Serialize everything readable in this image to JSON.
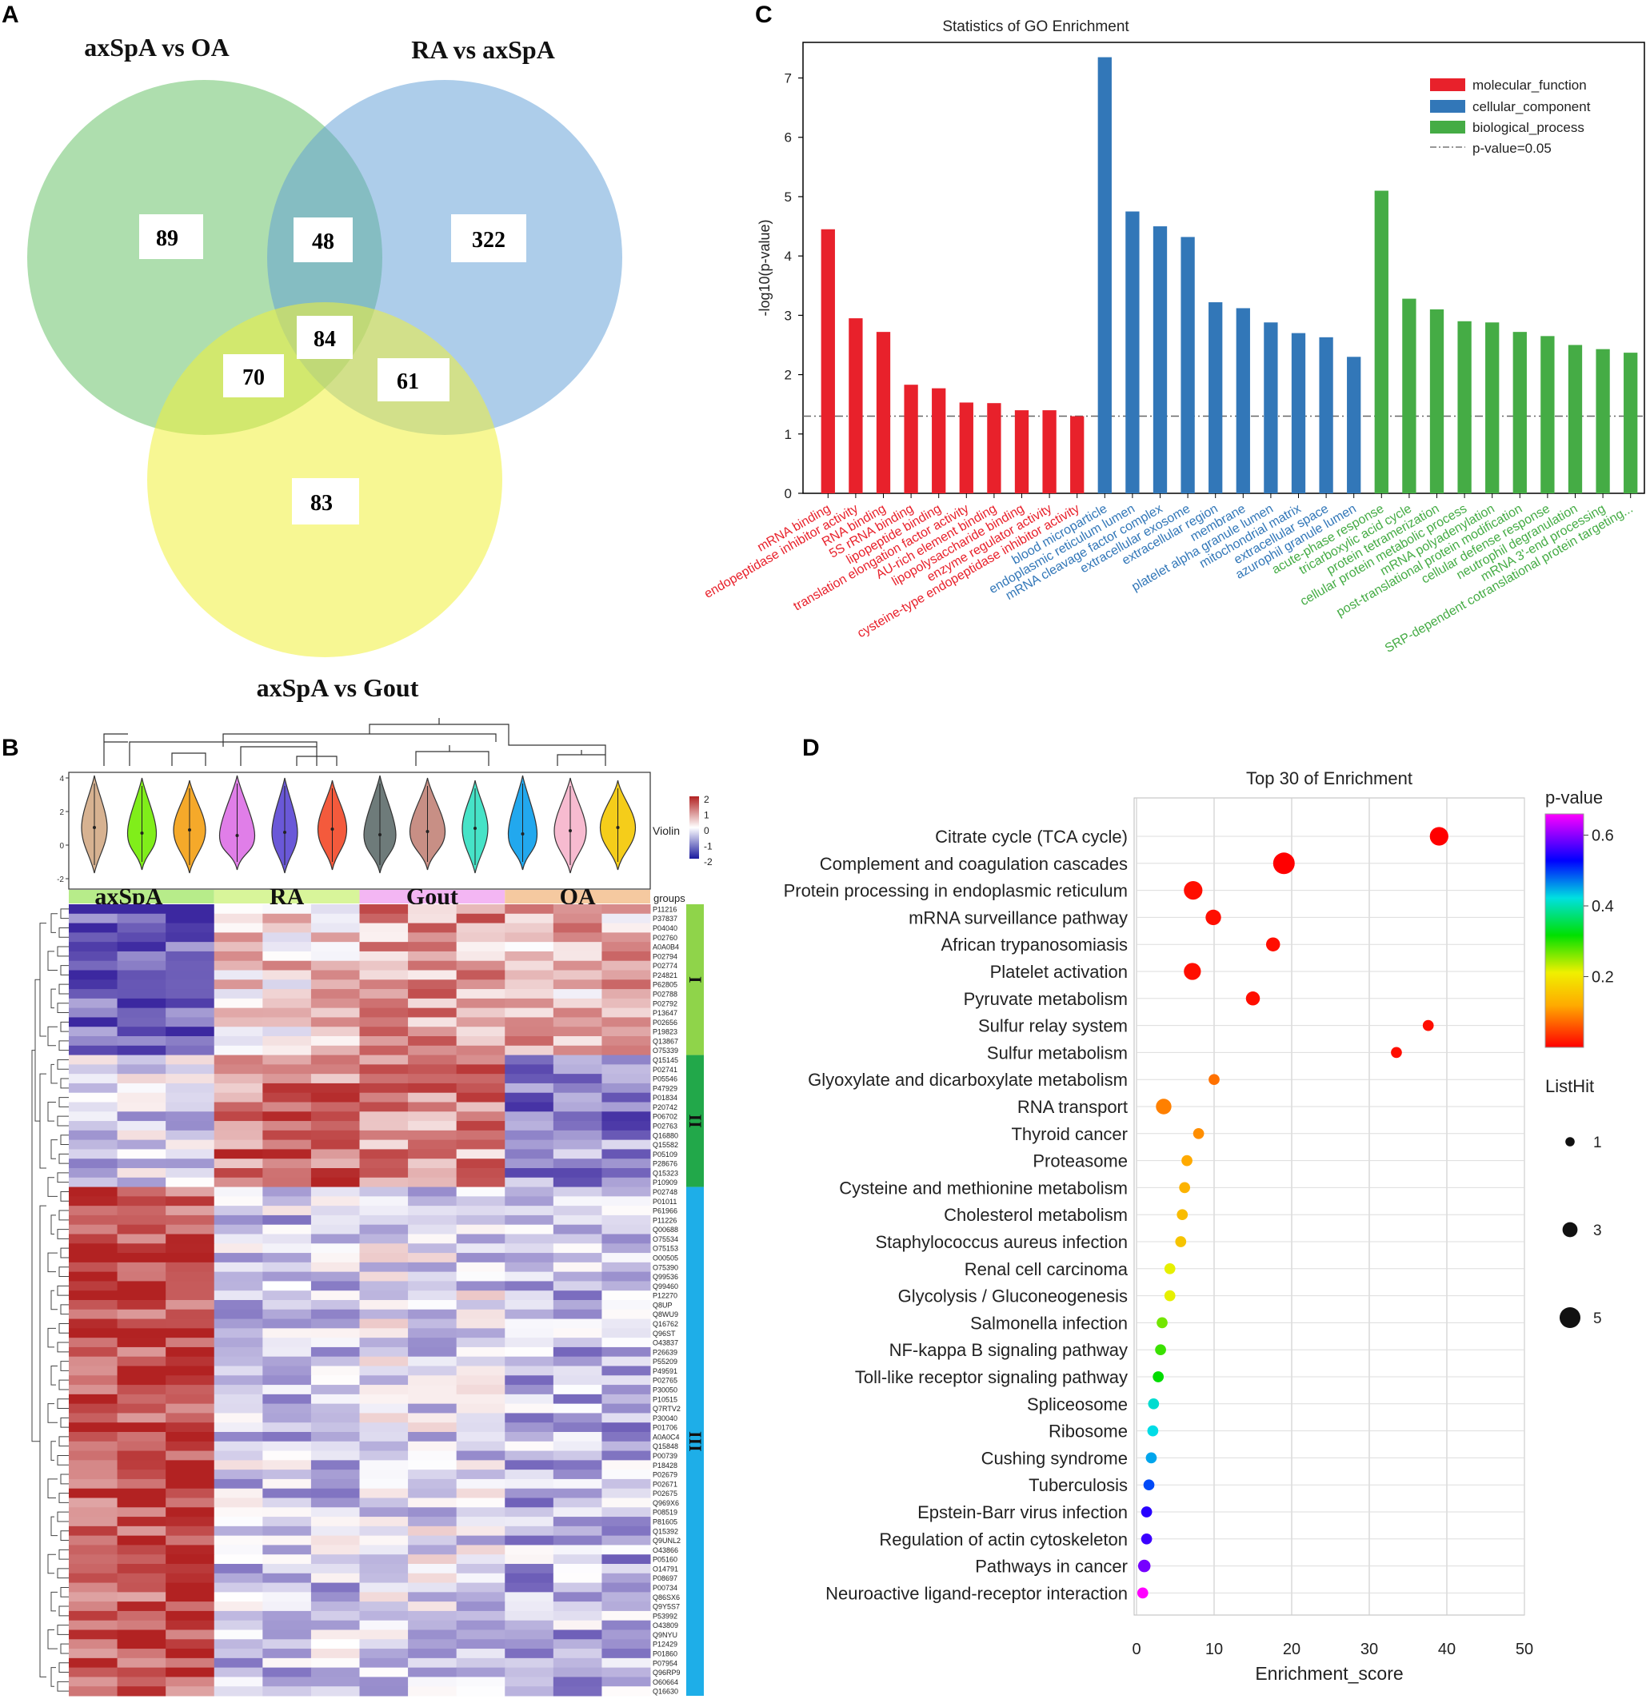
{
  "panels": {
    "a": "A",
    "b": "B",
    "c": "C",
    "d": "D"
  },
  "panel_a": {
    "sets": [
      {
        "name": "axSpA vs OA",
        "color": "#6cc36c"
      },
      {
        "name": "RA vs axSpA",
        "color": "#5b9bd5"
      },
      {
        "name": "axSpA vs Gout",
        "color": "#f0f03a"
      }
    ],
    "counts": [
      {
        "region": "axSpA vs OA only",
        "value": "89"
      },
      {
        "region": "axSpA vs OA & RA vs axSpA",
        "value": "48"
      },
      {
        "region": "RA vs axSpA only",
        "value": "322"
      },
      {
        "region": "all three",
        "value": "84"
      },
      {
        "region": "axSpA vs OA & axSpA vs Gout",
        "value": "70"
      },
      {
        "region": "RA vs axSpA & axSpA vs Gout",
        "value": "61"
      },
      {
        "region": "axSpA vs Gout only",
        "value": "83"
      }
    ]
  },
  "panel_b": {
    "groups_label": "groups",
    "violin_label": "Violin",
    "violin_axis_ticks": [
      "4",
      "2",
      "0",
      "-2"
    ],
    "colorbar_ticks": [
      "2",
      "1",
      "0",
      "-1",
      "-2"
    ],
    "groups": [
      {
        "name": "axSpA",
        "color": "#b7ec8a"
      },
      {
        "name": "RA",
        "color": "#d8f59a"
      },
      {
        "name": "Gout",
        "color": "#f3b6f3"
      },
      {
        "name": "OA",
        "color": "#f5c9a0"
      }
    ],
    "violin_colors": [
      "#d7b291",
      "#80ee1a",
      "#f5a92a",
      "#e07ee8",
      "#6a58d8",
      "#f45a3c",
      "#6e7b7a",
      "#c88f85",
      "#46e3c7",
      "#22a8ee",
      "#f7bbd0",
      "#f5cd1a"
    ],
    "clusters": [
      {
        "label": "I",
        "color": "#8fd44a",
        "rows": 16
      },
      {
        "label": "II",
        "color": "#22a84a",
        "rows": 14
      },
      {
        "label": "III",
        "color": "#1eaee8",
        "rows": 54
      }
    ],
    "row_labels": [
      "P11216",
      "P37837",
      "P04040",
      "P02760",
      "A0A0B4",
      "P02794",
      "P02774",
      "P24821",
      "P62805",
      "P02788",
      "P02792",
      "P13647",
      "P02656",
      "P19823",
      "Q13867",
      "O75339",
      "Q15145",
      "P02741",
      "P05546",
      "P47929",
      "P01834",
      "P20742",
      "P06702",
      "P02763",
      "Q16880",
      "Q15582",
      "P05109",
      "P28676",
      "Q15323",
      "P10909",
      "P02748",
      "P01011",
      "P61966",
      "P11226",
      "Q00688",
      "O75534",
      "O75153",
      "O00505",
      "O75390",
      "Q99536",
      "Q99460",
      "P12270",
      "Q8UP",
      "Q8WU9",
      "Q16762",
      "Q96ST",
      "O43837",
      "P26639",
      "P55209",
      "P49591",
      "P02765",
      "P30050",
      "P10515",
      "Q7RTV2",
      "P30040",
      "P01706",
      "A0A0C4",
      "Q15848",
      "P00739",
      "P18428",
      "P02679",
      "P02671",
      "P02675",
      "Q969X6",
      "P08519",
      "P81605",
      "Q15392",
      "Q9UNL2",
      "O43866",
      "P05160",
      "O14791",
      "P08697",
      "P00734",
      "Q86SX6",
      "Q9Y5S7",
      "P53992",
      "O43809",
      "Q9NYU",
      "P12429",
      "P01860",
      "P07954",
      "Q96RP9",
      "O60664",
      "Q16630"
    ]
  },
  "chart_data": [
    {
      "type": "bar",
      "title": "Statistics of GO Enrichment",
      "xlabel": "",
      "ylabel": "-log10(p-value)",
      "ylim": [
        0,
        7.6
      ],
      "yticks": [
        "0",
        "1",
        "2",
        "3",
        "4",
        "5",
        "6",
        "7"
      ],
      "threshold_label": "p-value=0.05",
      "threshold_value": 1.3,
      "legend_placement": "top-right",
      "series": [
        {
          "name": "molecular_function",
          "color": "#e8212b"
        },
        {
          "name": "cellular_component",
          "color": "#3277b8"
        },
        {
          "name": "biological_process",
          "color": "#45ac45"
        }
      ],
      "categories": [
        {
          "label": "mRNA binding",
          "series": 0,
          "value": 4.45
        },
        {
          "label": "endopeptidase inhibitor activity",
          "series": 0,
          "value": 2.95
        },
        {
          "label": "RNA binding",
          "series": 0,
          "value": 2.72
        },
        {
          "label": "5S rRNA binding",
          "series": 0,
          "value": 1.83
        },
        {
          "label": "lipopeptide binding",
          "series": 0,
          "value": 1.77
        },
        {
          "label": "translation elongation factor activity",
          "series": 0,
          "value": 1.53
        },
        {
          "label": "AU-rich element binding",
          "series": 0,
          "value": 1.52
        },
        {
          "label": "lipopolysaccharide binding",
          "series": 0,
          "value": 1.4
        },
        {
          "label": "enzyme regulator activity",
          "series": 0,
          "value": 1.4
        },
        {
          "label": "cysteine-type endopeptidase inhibitor activity",
          "series": 0,
          "value": 1.3
        },
        {
          "label": "blood microparticle",
          "series": 1,
          "value": 7.35
        },
        {
          "label": "endoplasmic reticulum lumen",
          "series": 1,
          "value": 4.75
        },
        {
          "label": "mRNA cleavage factor complex",
          "series": 1,
          "value": 4.5
        },
        {
          "label": "extracellular exosome",
          "series": 1,
          "value": 4.32
        },
        {
          "label": "extracellular region",
          "series": 1,
          "value": 3.22
        },
        {
          "label": "membrane",
          "series": 1,
          "value": 3.12
        },
        {
          "label": "platelet alpha granule lumen",
          "series": 1,
          "value": 2.88
        },
        {
          "label": "mitochondrial matrix",
          "series": 1,
          "value": 2.7
        },
        {
          "label": "extracellular space",
          "series": 1,
          "value": 2.63
        },
        {
          "label": "azurophil granule lumen",
          "series": 1,
          "value": 2.3
        },
        {
          "label": "acute-phase response",
          "series": 2,
          "value": 5.1
        },
        {
          "label": "tricarboxylic acid cycle",
          "series": 2,
          "value": 3.28
        },
        {
          "label": "protein tetramerization",
          "series": 2,
          "value": 3.1
        },
        {
          "label": "cellular protein metabolic process",
          "series": 2,
          "value": 2.9
        },
        {
          "label": "mRNA polyadenylation",
          "series": 2,
          "value": 2.88
        },
        {
          "label": "post-translational protein modification",
          "series": 2,
          "value": 2.72
        },
        {
          "label": "cellular defense response",
          "series": 2,
          "value": 2.65
        },
        {
          "label": "neutrophil degranulation",
          "series": 2,
          "value": 2.5
        },
        {
          "label": "mRNA 3'-end processing",
          "series": 2,
          "value": 2.43
        },
        {
          "label": "SRP-dependent cotranslational protein targeting...",
          "series": 2,
          "value": 2.37
        }
      ]
    },
    {
      "type": "scatter",
      "title": "Top 30 of  Enrichment",
      "xlabel": "Enrichment_score",
      "ylabel": "",
      "xlim": [
        0,
        50
      ],
      "xticks": [
        "0",
        "10",
        "20",
        "30",
        "40",
        "50"
      ],
      "colorbar_title": "p-value",
      "colorbar_ticks": [
        "0.6",
        "0.4",
        "0.2"
      ],
      "size_legend_title": "ListHit",
      "size_legend": [
        "1",
        "3",
        "5"
      ],
      "points": [
        {
          "term": "Citrate cycle (TCA cycle)",
          "x": 39,
          "pvalue": 0.0,
          "listhit": 4
        },
        {
          "term": "Complement and coagulation cascades",
          "x": 19,
          "pvalue": 0.0,
          "listhit": 5
        },
        {
          "term": "Protein processing in endoplasmic reticulum",
          "x": 7.3,
          "pvalue": 0.01,
          "listhit": 4
        },
        {
          "term": "mRNA surveillance pathway",
          "x": 9.9,
          "pvalue": 0.01,
          "listhit": 3
        },
        {
          "term": "African trypanosomiasis",
          "x": 17.6,
          "pvalue": 0.01,
          "listhit": 2.5
        },
        {
          "term": "Platelet activation",
          "x": 7.2,
          "pvalue": 0.01,
          "listhit": 3.5
        },
        {
          "term": "Pyruvate metabolism",
          "x": 15,
          "pvalue": 0.01,
          "listhit": 2.5
        },
        {
          "term": "Sulfur relay system",
          "x": 37.6,
          "pvalue": 0.01,
          "listhit": 1.5
        },
        {
          "term": "Sulfur metabolism",
          "x": 33.5,
          "pvalue": 0.01,
          "listhit": 1.5
        },
        {
          "term": "Glyoxylate and dicarboxylate metabolism",
          "x": 10,
          "pvalue": 0.08,
          "listhit": 1.5
        },
        {
          "term": "RNA transport",
          "x": 3.5,
          "pvalue": 0.09,
          "listhit": 3
        },
        {
          "term": "Thyroid cancer",
          "x": 8,
          "pvalue": 0.1,
          "listhit": 1.5
        },
        {
          "term": "Proteasome",
          "x": 6.5,
          "pvalue": 0.12,
          "listhit": 1.5
        },
        {
          "term": "Cysteine and methionine metabolism",
          "x": 6.2,
          "pvalue": 0.13,
          "listhit": 1.5
        },
        {
          "term": "Cholesterol metabolism",
          "x": 5.9,
          "pvalue": 0.14,
          "listhit": 1.5
        },
        {
          "term": "Staphylococcus aureus infection",
          "x": 5.7,
          "pvalue": 0.15,
          "listhit": 1.5
        },
        {
          "term": "Renal cell carcinoma",
          "x": 4.3,
          "pvalue": 0.2,
          "listhit": 1.5
        },
        {
          "term": "Glycolysis / Gluconeogenesis",
          "x": 4.3,
          "pvalue": 0.2,
          "listhit": 1.5
        },
        {
          "term": "Salmonella infection",
          "x": 3.3,
          "pvalue": 0.24,
          "listhit": 1.5
        },
        {
          "term": "NF-kappa B signaling pathway",
          "x": 3.1,
          "pvalue": 0.26,
          "listhit": 1.5
        },
        {
          "term": "Toll-like receptor signaling pathway",
          "x": 2.8,
          "pvalue": 0.28,
          "listhit": 1.5
        },
        {
          "term": "Spliceosome",
          "x": 2.2,
          "pvalue": 0.37,
          "listhit": 1.5
        },
        {
          "term": "Ribosome",
          "x": 2.1,
          "pvalue": 0.38,
          "listhit": 1.5
        },
        {
          "term": "Cushing syndrome",
          "x": 1.9,
          "pvalue": 0.41,
          "listhit": 1.5
        },
        {
          "term": "Tuberculosis",
          "x": 1.6,
          "pvalue": 0.46,
          "listhit": 1.5
        },
        {
          "term": "Epstein-Barr virus infection",
          "x": 1.3,
          "pvalue": 0.52,
          "listhit": 1.5
        },
        {
          "term": "Regulation of actin cytoskeleton",
          "x": 1.3,
          "pvalue": 0.53,
          "listhit": 1.5
        },
        {
          "term": "Pathways in cancer",
          "x": 1.0,
          "pvalue": 0.56,
          "listhit": 2
        },
        {
          "term": "Neuroactive ligand-receptor interaction",
          "x": 0.8,
          "pvalue": 0.63,
          "listhit": 1.5
        }
      ]
    }
  ]
}
